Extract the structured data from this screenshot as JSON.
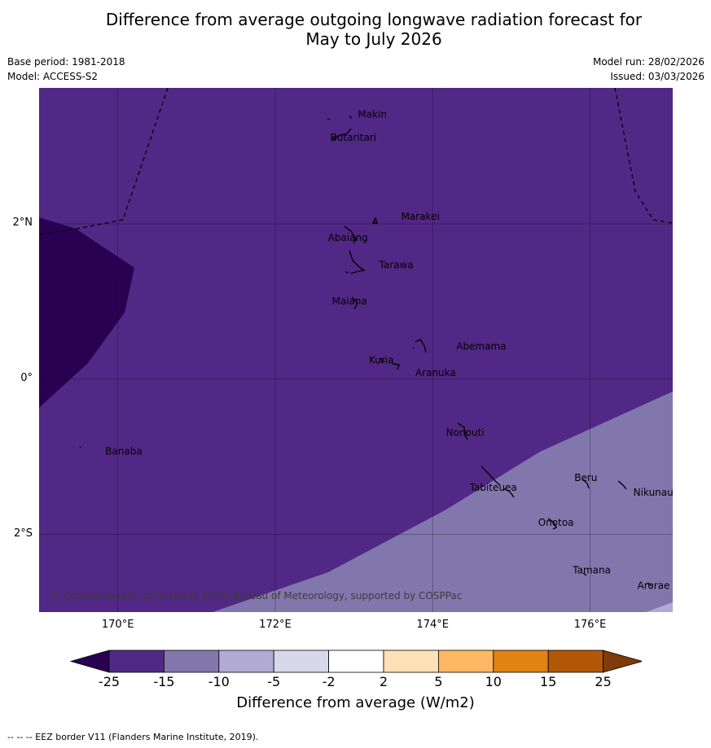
{
  "title_line1": "Difference from average outgoing longwave radiation forecast for",
  "title_line2": "May to July 2026",
  "base_period": "Base period: 1981-2018",
  "model": "Model: ACCESS-S2",
  "model_run": "Model run: 28/02/2026",
  "issued": "Issued: 03/03/2026",
  "copyright": "© Commonwealth of Australia 2026, Bureau of Meteorology, supported by COSPPac",
  "axes": {
    "lon_range": [
      169.0,
      177.05
    ],
    "lat_range": [
      -3.0,
      3.75
    ],
    "x_ticks": [
      {
        "lon": 170,
        "label": "170°E"
      },
      {
        "lon": 172,
        "label": "172°E"
      },
      {
        "lon": 174,
        "label": "174°E"
      },
      {
        "lon": 176,
        "label": "176°E"
      }
    ],
    "y_ticks": [
      {
        "lat": 2,
        "label": "2°N"
      },
      {
        "lat": 0,
        "label": "0°"
      },
      {
        "lat": -2,
        "label": "2°S"
      }
    ]
  },
  "colors": {
    "map_background": "#522886",
    "lt_minus25": "#2a0052",
    "minus15_minus10": "#8177ad",
    "minus10_minus5": "#b1aad5"
  },
  "places": [
    {
      "name": "Makin",
      "lon": 173.05,
      "lat": 3.37
    },
    {
      "name": "Butaritari",
      "lon": 172.7,
      "lat": 3.07
    },
    {
      "name": "Marakei",
      "lon": 173.6,
      "lat": 2.05
    },
    {
      "name": "Abaiang",
      "lon": 172.67,
      "lat": 1.78
    },
    {
      "name": "Tarawa",
      "lon": 173.32,
      "lat": 1.43
    },
    {
      "name": "Maiana",
      "lon": 172.72,
      "lat": 0.96
    },
    {
      "name": "Abemama",
      "lon": 174.3,
      "lat": 0.38
    },
    {
      "name": "Kuria",
      "lon": 173.19,
      "lat": 0.2
    },
    {
      "name": "Aranuka",
      "lon": 173.78,
      "lat": 0.04
    },
    {
      "name": "Nonouti",
      "lon": 174.17,
      "lat": -0.73
    },
    {
      "name": "Banaba",
      "lon": 169.84,
      "lat": -0.97
    },
    {
      "name": "Beru",
      "lon": 175.8,
      "lat": -1.31
    },
    {
      "name": "Tabiteuea",
      "lon": 174.47,
      "lat": -1.44
    },
    {
      "name": "Nikunau",
      "lon": 176.55,
      "lat": -1.5
    },
    {
      "name": "Onotoa",
      "lon": 175.34,
      "lat": -1.89
    },
    {
      "name": "Tamana",
      "lon": 175.78,
      "lat": -2.5
    },
    {
      "name": "Arorae",
      "lon": 176.6,
      "lat": -2.7
    }
  ],
  "colorbar": {
    "title": "Difference from average (W/m2)",
    "ticks": [
      "-25",
      "-15",
      "-10",
      "-5",
      "-2",
      "2",
      "5",
      "10",
      "15",
      "25"
    ],
    "colors": [
      "#2a0052",
      "#522886",
      "#8177ad",
      "#b1aad5",
      "#d9d8ea",
      "#ffffff",
      "#fee0b6",
      "#fdb863",
      "#e08214",
      "#b35806",
      "#7f3b08"
    ]
  },
  "footer": "--  --  -- EEZ border V11 (Flanders Marine Institute, 2019)."
}
